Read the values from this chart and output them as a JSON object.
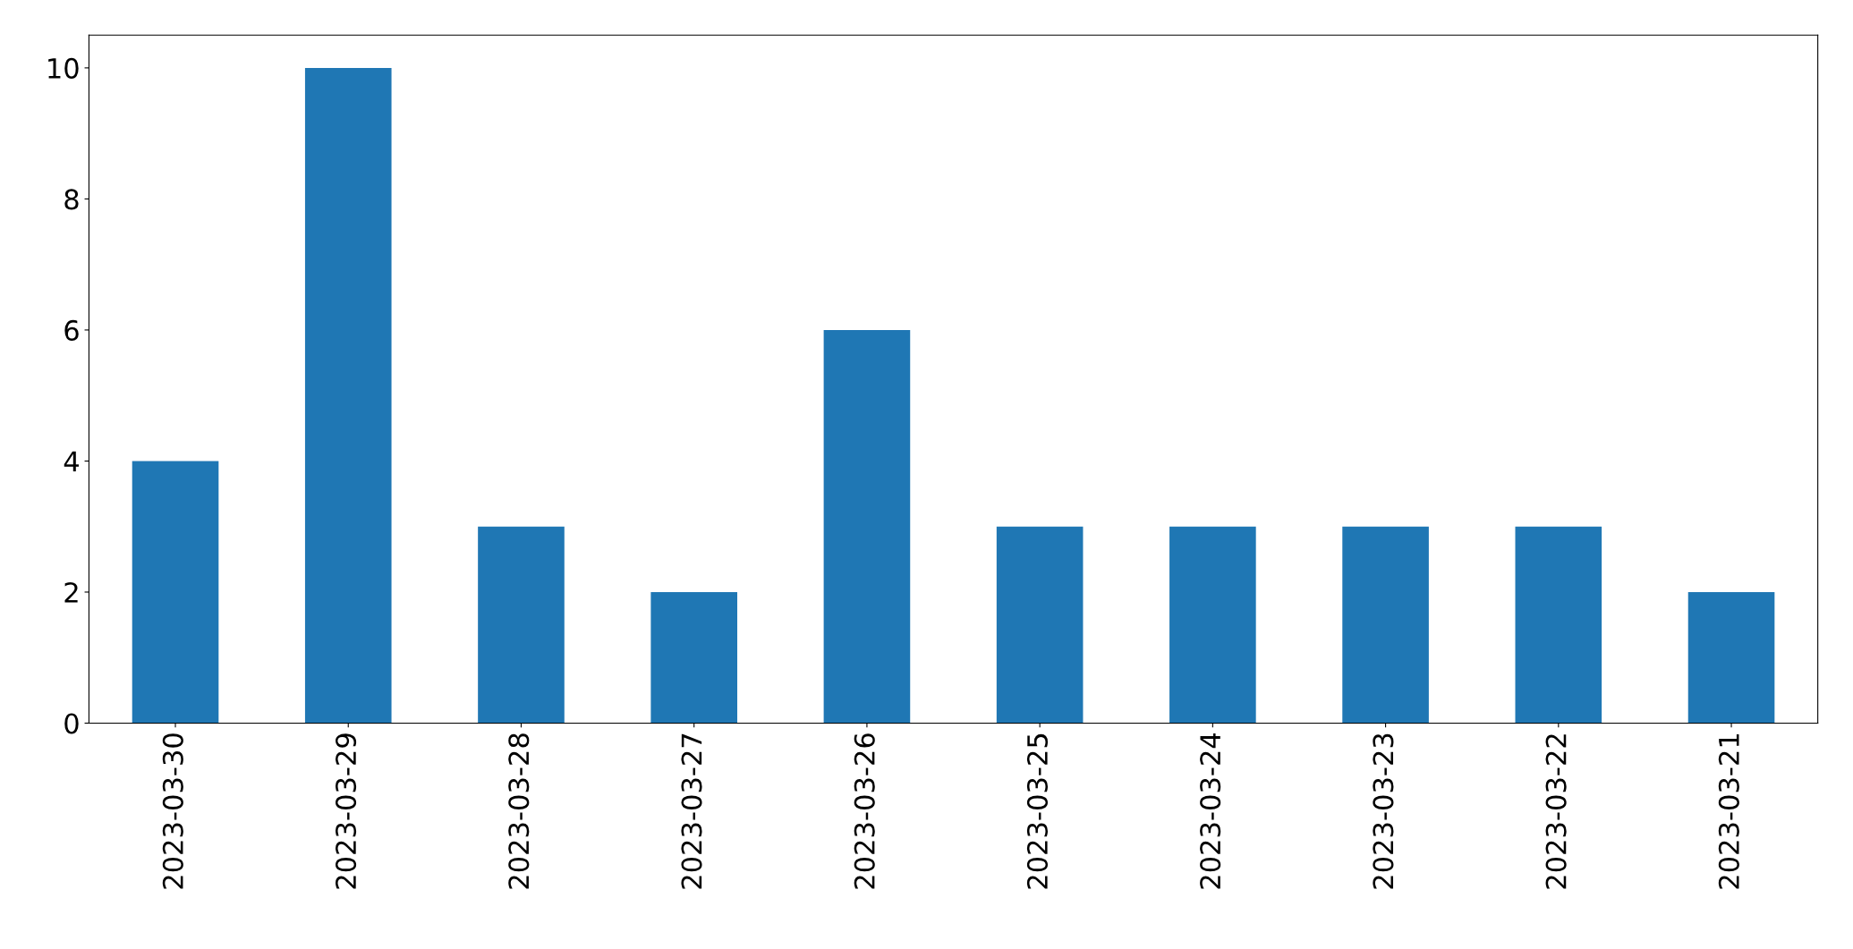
{
  "chart_data": {
    "type": "bar",
    "categories": [
      "2023-03-30",
      "2023-03-29",
      "2023-03-28",
      "2023-03-27",
      "2023-03-26",
      "2023-03-25",
      "2023-03-24",
      "2023-03-23",
      "2023-03-22",
      "2023-03-21"
    ],
    "values": [
      4,
      10,
      3,
      2,
      6,
      3,
      3,
      3,
      3,
      2
    ],
    "color": "#1f77b4",
    "ylim": [
      0,
      10.5
    ],
    "yticks": [
      0,
      2,
      4,
      6,
      8,
      10
    ],
    "grid": false,
    "legend": false
  }
}
